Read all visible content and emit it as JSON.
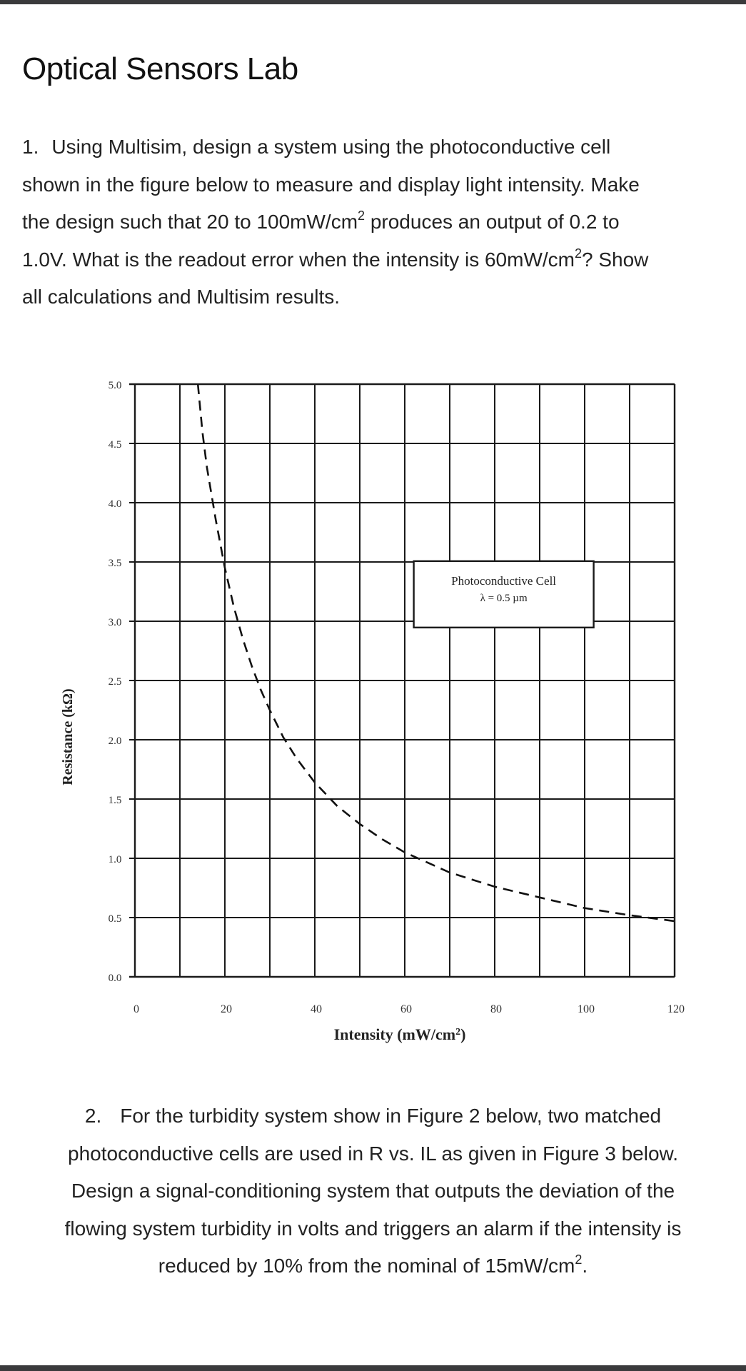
{
  "page": {
    "title": "Optical Sensors Lab"
  },
  "question1": {
    "number": "1.",
    "line1": "Using Multisim, design a system using the photoconductive cell",
    "line2": "shown in the figure below to measure and display light intensity. Make",
    "line3_a": "the design such that 20 to 100mW/cm",
    "line3_sup": "2",
    "line3_b": " produces an output of 0.2 to",
    "line4_a": "1.0V. What is the readout error when the intensity is 60mW/cm",
    "line4_sup": "2",
    "line4_b": "? Show",
    "line5": "all calculations and Multisim results."
  },
  "question2": {
    "number": "2.",
    "line1": "For the turbidity system show in Figure 2 below, two matched",
    "line2": "photoconductive cells are used in R vs. IL as given in Figure 3 below.",
    "line3": "Design a signal-conditioning system that outputs the deviation of the",
    "line4": "flowing system turbidity in volts and triggers an alarm if the intensity is",
    "line5_a": "reduced by 10% from the nominal of 15mW/cm",
    "line5_sup": "2",
    "line5_b": "."
  },
  "chart_data": {
    "type": "line",
    "xlabel": "Intensity (mW/cm",
    "xlabel_sup": "2",
    "xlabel_end": ")",
    "ylabel": "Resistance (kΩ)",
    "xlim": [
      0,
      120
    ],
    "ylim": [
      0,
      5
    ],
    "x_ticks": [
      0,
      20,
      40,
      60,
      80,
      100,
      120
    ],
    "x_tick_labels": [
      "0",
      "20",
      "40",
      "60",
      "80",
      "100",
      "120"
    ],
    "y_ticks": [
      0,
      0.5,
      1,
      1.5,
      2,
      2.5,
      3,
      3.5,
      4,
      4.5,
      5
    ],
    "y_tick_labels": [
      "0.0",
      "0.5",
      "1.0",
      "1.5",
      "2.0",
      "2.5",
      "3.0",
      "3.5",
      "4.0",
      "4.5",
      "5.0"
    ],
    "grid": true,
    "annotation": {
      "line1": "Photoconductive Cell",
      "line2": "λ = 0.5  µm",
      "x": 82,
      "y": 3.2
    },
    "series": [
      {
        "style": "dashed",
        "color": "#111111",
        "x": [
          14,
          15,
          16,
          18,
          20,
          22,
          24,
          26,
          28,
          30,
          33,
          36,
          40,
          45,
          50,
          55,
          60,
          70,
          80,
          90,
          100,
          110,
          120
        ],
        "y": [
          5.0,
          4.6,
          4.3,
          3.85,
          3.45,
          3.12,
          2.85,
          2.62,
          2.42,
          2.25,
          2.02,
          1.84,
          1.64,
          1.44,
          1.29,
          1.16,
          1.05,
          0.88,
          0.76,
          0.67,
          0.58,
          0.52,
          0.47
        ]
      }
    ]
  }
}
